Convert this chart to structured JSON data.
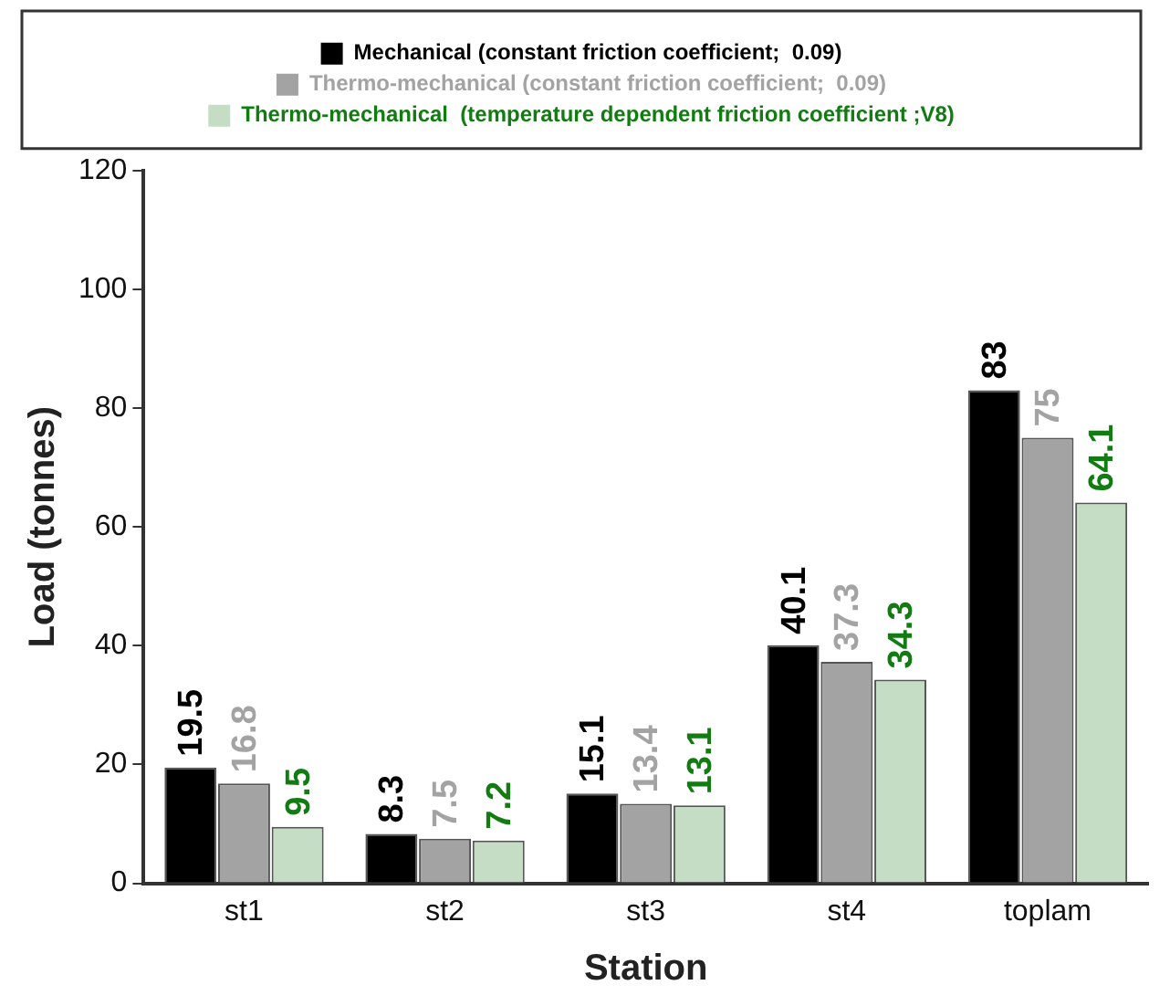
{
  "chart_data": {
    "type": "bar",
    "xlabel": "Station",
    "ylabel": "Load (tonnes)",
    "categories": [
      "st1",
      "st2",
      "st3",
      "st4",
      "toplam"
    ],
    "series": [
      {
        "name": "Mechanical (constant friction coefficient;  0.09)",
        "color": "#000000",
        "values": [
          19.5,
          8.3,
          15.1,
          40.1,
          83
        ]
      },
      {
        "name": "Thermo-mechanical (constant friction coefficient;  0.09)",
        "color": "#a3a3a3",
        "values": [
          16.8,
          7.5,
          13.4,
          37.3,
          75
        ]
      },
      {
        "name": "Thermo-mechanical  (temperature dependent friction coefficient ;V8)",
        "color": "#c5dcc5",
        "values": [
          9.5,
          7.2,
          13.1,
          34.3,
          64.1
        ]
      }
    ],
    "ylim": [
      0,
      120
    ],
    "yticks": [
      0,
      20,
      40,
      60,
      80,
      100,
      120
    ],
    "data_labels": true,
    "legend": "top",
    "grid": false
  }
}
